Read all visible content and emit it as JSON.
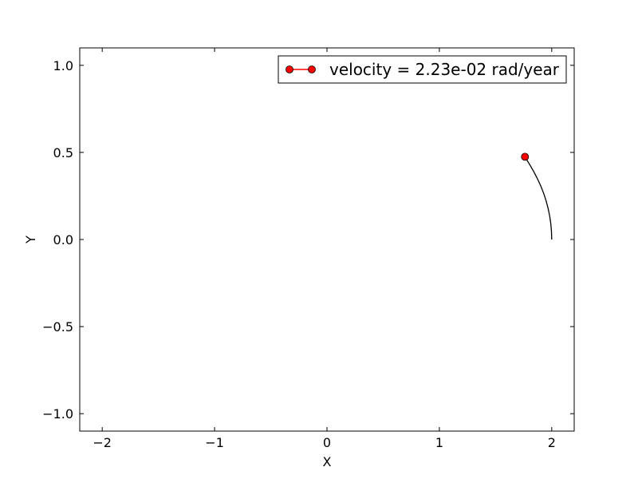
{
  "chart_data": {
    "type": "line",
    "xlabel": "X",
    "ylabel": "Y",
    "xlim": [
      -2.2,
      2.2
    ],
    "ylim": [
      -1.1,
      1.1
    ],
    "xticks": [
      -2,
      -1,
      0,
      1,
      2
    ],
    "xtick_labels": [
      "−2",
      "−1",
      "0",
      "1",
      "2"
    ],
    "yticks": [
      -1.0,
      -0.5,
      0.0,
      0.5,
      1.0
    ],
    "ytick_labels": [
      "−1.0",
      "−0.5",
      "0.0",
      "0.5",
      "1.0"
    ],
    "grid": false,
    "legend_placement": "top-right",
    "legend": [
      {
        "label": "velocity = 2.23e-02 rad/year",
        "marker": "circle",
        "color": "#ff0000"
      }
    ],
    "series": [
      {
        "kind": "trail",
        "color": "#000000",
        "x": [
          2.0,
          1.998,
          1.992,
          1.982,
          1.968,
          1.95,
          1.928,
          1.903,
          1.873,
          1.84,
          1.804,
          1.762
        ],
        "y": [
          0.0,
          0.045,
          0.089,
          0.134,
          0.178,
          0.222,
          0.265,
          0.307,
          0.349,
          0.39,
          0.43,
          0.475
        ]
      },
      {
        "kind": "marker",
        "color": "#ff0000",
        "x": [
          1.762
        ],
        "y": [
          0.475
        ]
      }
    ]
  }
}
